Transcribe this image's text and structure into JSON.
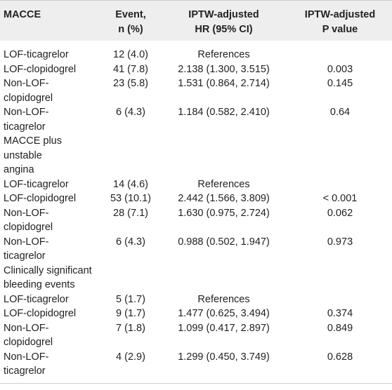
{
  "headers": {
    "col1": [
      "MACCE"
    ],
    "col2": [
      "Event,",
      "n (%)"
    ],
    "col3": [
      "IPTW-adjusted",
      "HR (95% CI)"
    ],
    "col4": [
      "IPTW-adjusted",
      "P value"
    ]
  },
  "rows": [
    {
      "label": "LOF-ticagrelor",
      "event": "12 (4.0)",
      "hr": "References",
      "p": ""
    },
    {
      "label": "LOF-clopidogrel",
      "event": "41 (7.8)",
      "hr": "2.138 (1.300, 3.515)",
      "p": "0.003"
    },
    {
      "label": "Non-LOF-\nclopidogrel",
      "event": "23 (5.8)",
      "hr": "1.531 (0.864, 2.714)",
      "p": "0.145"
    },
    {
      "label": "Non-LOF-\nticagrelor",
      "event": "6 (4.3)",
      "hr": "1.184 (0.582, 2.410)",
      "p": "0.64"
    },
    {
      "label": "MACCE plus unstable\nangina",
      "event": "",
      "hr": "",
      "p": "",
      "section": true
    },
    {
      "label": "LOF-ticagrelor",
      "event": "14 (4.6)",
      "hr": "References",
      "p": ""
    },
    {
      "label": "LOF-clopidogrel",
      "event": "53 (10.1)",
      "hr": "2.442 (1.566, 3.809)",
      "p": "< 0.001"
    },
    {
      "label": "Non-LOF-\nclopidogrel",
      "event": "28 (7.1)",
      "hr": "1.630 (0.975, 2.724)",
      "p": "0.062"
    },
    {
      "label": "Non-LOF-\nticagrelor",
      "event": "6 (4.3)",
      "hr": "0.988 (0.502, 1.947)",
      "p": "0.973"
    },
    {
      "label": "Clinically significant\nbleeding events",
      "event": "",
      "hr": "",
      "p": "",
      "section": true
    },
    {
      "label": "LOF-ticagrelor",
      "event": "5 (1.7)",
      "hr": "References",
      "p": ""
    },
    {
      "label": "LOF-clopidogrel",
      "event": "9 (1.7)",
      "hr": "1.477 (0.625, 3.494)",
      "p": "0.374"
    },
    {
      "label": "Non-LOF-\nclopidogrel",
      "event": "7 (1.8)",
      "hr": "1.099 (0.417, 2.897)",
      "p": "0.849"
    },
    {
      "label": "Non-LOF-\nticagrelor",
      "event": "4 (2.9)",
      "hr": "1.299 (0.450, 3.749)",
      "p": "0.628"
    }
  ]
}
